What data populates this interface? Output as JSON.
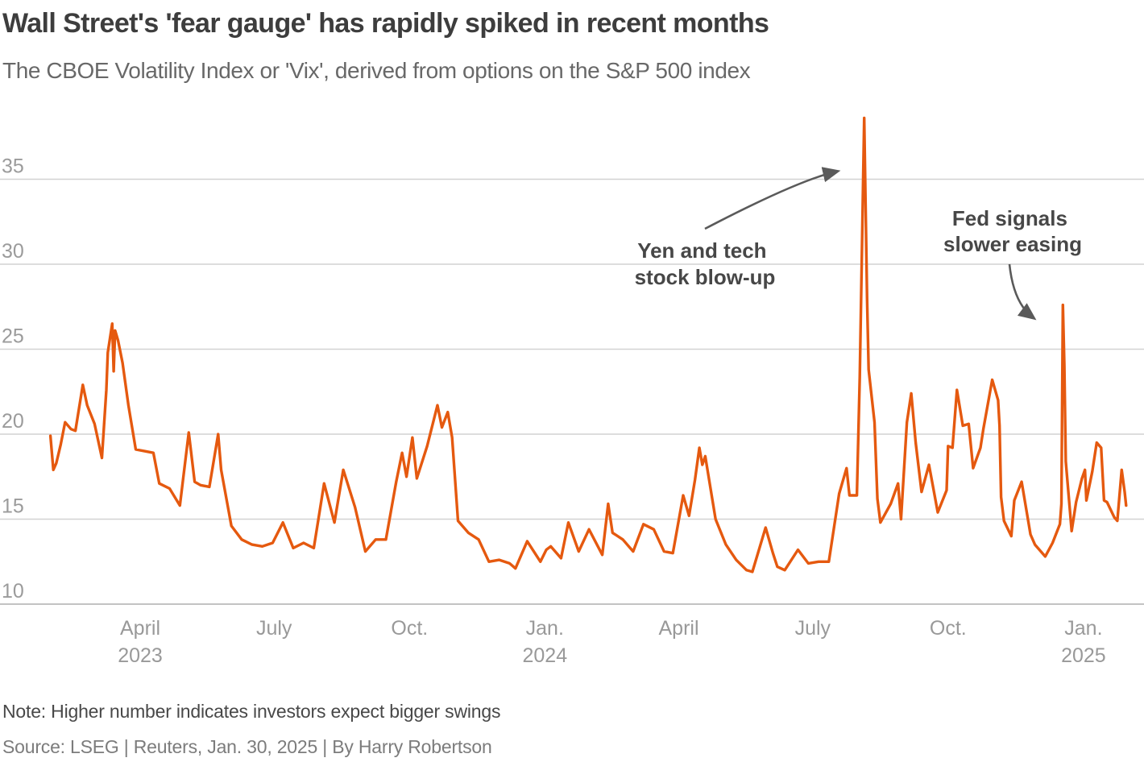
{
  "header": {
    "title": "Wall Street's 'fear gauge' has rapidly spiked in recent months",
    "subtitle": "The CBOE Volatility Index or 'Vix', derived from options on the S&P 500 index"
  },
  "footer": {
    "note": "Note: Higher number indicates investors expect bigger swings",
    "source": "Source: LSEG | Reuters, Jan. 30, 2025 | By Harry Robertson"
  },
  "annotations": [
    {
      "line1": "Yen and tech",
      "line2": "stock blow-up",
      "points_to": "2024-08-05 spike (38.6)"
    },
    {
      "line1": "Fed signals",
      "line2": "slower easing",
      "points_to": "2024-12-18 spike (27.6)"
    }
  ],
  "colors": {
    "line": "#e5590f",
    "grid": "#d2d2d2",
    "axis_label": "#9b9b9b",
    "title": "#3d3d3d",
    "subtitle": "#686868",
    "annotation": "#474747",
    "arrow": "#5a5a5a"
  },
  "chart_data": {
    "type": "line",
    "title": "Wall Street's 'fear gauge' has rapidly spiked in recent months",
    "subtitle": "The CBOE Volatility Index or 'Vix', derived from options on the S&P 500 index",
    "grid": "horizontal",
    "legend": "none",
    "y_axis": {
      "ticks": [
        10,
        15,
        20,
        25,
        30,
        35
      ],
      "range": [
        9,
        39.5
      ],
      "label": ""
    },
    "x_axis": {
      "range": [
        "2023-01-30",
        "2025-01-30"
      ],
      "ticks": [
        {
          "date": "2023-04-01",
          "label": "April",
          "year": "2023"
        },
        {
          "date": "2023-07-01",
          "label": "July",
          "year": ""
        },
        {
          "date": "2023-10-01",
          "label": "Oct.",
          "year": ""
        },
        {
          "date": "2024-01-01",
          "label": "Jan.",
          "year": "2024"
        },
        {
          "date": "2024-04-01",
          "label": "April",
          "year": ""
        },
        {
          "date": "2024-07-01",
          "label": "July",
          "year": ""
        },
        {
          "date": "2024-10-01",
          "label": "Oct.",
          "year": ""
        },
        {
          "date": "2025-01-01",
          "label": "Jan.",
          "year": "2025"
        }
      ]
    },
    "series": [
      {
        "name": "CBOE Volatility Index (VIX)",
        "points": [
          [
            "2023-01-30",
            19.9
          ],
          [
            "2023-02-01",
            17.9
          ],
          [
            "2023-02-03",
            18.3
          ],
          [
            "2023-02-06",
            19.4
          ],
          [
            "2023-02-09",
            20.7
          ],
          [
            "2023-02-13",
            20.3
          ],
          [
            "2023-02-16",
            20.2
          ],
          [
            "2023-02-21",
            22.9
          ],
          [
            "2023-02-24",
            21.7
          ],
          [
            "2023-03-01",
            20.6
          ],
          [
            "2023-03-06",
            18.6
          ],
          [
            "2023-03-09",
            22.6
          ],
          [
            "2023-03-10",
            24.8
          ],
          [
            "2023-03-13",
            26.5
          ],
          [
            "2023-03-14",
            23.7
          ],
          [
            "2023-03-15",
            26.1
          ],
          [
            "2023-03-17",
            25.5
          ],
          [
            "2023-03-20",
            24.2
          ],
          [
            "2023-03-24",
            21.7
          ],
          [
            "2023-03-29",
            19.1
          ],
          [
            "2023-04-04",
            19.0
          ],
          [
            "2023-04-10",
            18.9
          ],
          [
            "2023-04-14",
            17.1
          ],
          [
            "2023-04-21",
            16.8
          ],
          [
            "2023-04-28",
            15.8
          ],
          [
            "2023-05-04",
            20.1
          ],
          [
            "2023-05-08",
            17.2
          ],
          [
            "2023-05-12",
            17.0
          ],
          [
            "2023-05-18",
            16.9
          ],
          [
            "2023-05-24",
            20.0
          ],
          [
            "2023-05-26",
            17.9
          ],
          [
            "2023-06-02",
            14.6
          ],
          [
            "2023-06-09",
            13.8
          ],
          [
            "2023-06-16",
            13.5
          ],
          [
            "2023-06-23",
            13.4
          ],
          [
            "2023-06-30",
            13.6
          ],
          [
            "2023-07-07",
            14.8
          ],
          [
            "2023-07-14",
            13.3
          ],
          [
            "2023-07-21",
            13.6
          ],
          [
            "2023-07-28",
            13.3
          ],
          [
            "2023-08-04",
            17.1
          ],
          [
            "2023-08-11",
            14.8
          ],
          [
            "2023-08-17",
            17.9
          ],
          [
            "2023-08-25",
            15.7
          ],
          [
            "2023-09-01",
            13.1
          ],
          [
            "2023-09-08",
            13.8
          ],
          [
            "2023-09-15",
            13.8
          ],
          [
            "2023-09-22",
            17.2
          ],
          [
            "2023-09-26",
            18.9
          ],
          [
            "2023-09-29",
            17.5
          ],
          [
            "2023-10-03",
            19.8
          ],
          [
            "2023-10-06",
            17.4
          ],
          [
            "2023-10-13",
            19.3
          ],
          [
            "2023-10-20",
            21.7
          ],
          [
            "2023-10-23",
            20.4
          ],
          [
            "2023-10-27",
            21.3
          ],
          [
            "2023-10-30",
            19.8
          ],
          [
            "2023-11-03",
            14.9
          ],
          [
            "2023-11-10",
            14.2
          ],
          [
            "2023-11-17",
            13.8
          ],
          [
            "2023-11-24",
            12.5
          ],
          [
            "2023-12-01",
            12.6
          ],
          [
            "2023-12-08",
            12.4
          ],
          [
            "2023-12-12",
            12.1
          ],
          [
            "2023-12-20",
            13.7
          ],
          [
            "2023-12-29",
            12.5
          ],
          [
            "2024-01-02",
            13.2
          ],
          [
            "2024-01-05",
            13.4
          ],
          [
            "2024-01-12",
            12.7
          ],
          [
            "2024-01-17",
            14.8
          ],
          [
            "2024-01-24",
            13.1
          ],
          [
            "2024-01-31",
            14.4
          ],
          [
            "2024-02-09",
            12.9
          ],
          [
            "2024-02-13",
            15.9
          ],
          [
            "2024-02-16",
            14.2
          ],
          [
            "2024-02-23",
            13.8
          ],
          [
            "2024-03-01",
            13.1
          ],
          [
            "2024-03-08",
            14.7
          ],
          [
            "2024-03-15",
            14.4
          ],
          [
            "2024-03-22",
            13.1
          ],
          [
            "2024-03-28",
            13.0
          ],
          [
            "2024-04-04",
            16.4
          ],
          [
            "2024-04-08",
            15.2
          ],
          [
            "2024-04-12",
            17.3
          ],
          [
            "2024-04-15",
            19.2
          ],
          [
            "2024-04-17",
            18.2
          ],
          [
            "2024-04-19",
            18.7
          ],
          [
            "2024-04-26",
            15.0
          ],
          [
            "2024-05-03",
            13.5
          ],
          [
            "2024-05-10",
            12.6
          ],
          [
            "2024-05-17",
            12.0
          ],
          [
            "2024-05-21",
            11.9
          ],
          [
            "2024-05-30",
            14.5
          ],
          [
            "2024-06-04",
            13.0
          ],
          [
            "2024-06-07",
            12.2
          ],
          [
            "2024-06-12",
            12.0
          ],
          [
            "2024-06-21",
            13.2
          ],
          [
            "2024-06-28",
            12.4
          ],
          [
            "2024-07-05",
            12.5
          ],
          [
            "2024-07-12",
            12.5
          ],
          [
            "2024-07-19",
            16.5
          ],
          [
            "2024-07-24",
            18.0
          ],
          [
            "2024-07-26",
            16.4
          ],
          [
            "2024-07-31",
            16.4
          ],
          [
            "2024-08-02",
            23.4
          ],
          [
            "2024-08-05",
            38.6
          ],
          [
            "2024-08-07",
            27.9
          ],
          [
            "2024-08-08",
            23.8
          ],
          [
            "2024-08-12",
            20.7
          ],
          [
            "2024-08-14",
            16.2
          ],
          [
            "2024-08-16",
            14.8
          ],
          [
            "2024-08-23",
            15.9
          ],
          [
            "2024-08-28",
            17.1
          ],
          [
            "2024-08-30",
            15.0
          ],
          [
            "2024-09-03",
            20.7
          ],
          [
            "2024-09-06",
            22.4
          ],
          [
            "2024-09-09",
            19.5
          ],
          [
            "2024-09-13",
            16.6
          ],
          [
            "2024-09-18",
            18.2
          ],
          [
            "2024-09-24",
            15.4
          ],
          [
            "2024-09-30",
            16.7
          ],
          [
            "2024-10-01",
            19.3
          ],
          [
            "2024-10-04",
            19.2
          ],
          [
            "2024-10-07",
            22.6
          ],
          [
            "2024-10-11",
            20.5
          ],
          [
            "2024-10-15",
            20.6
          ],
          [
            "2024-10-18",
            18.0
          ],
          [
            "2024-10-23",
            19.2
          ],
          [
            "2024-10-25",
            20.3
          ],
          [
            "2024-10-31",
            23.2
          ],
          [
            "2024-11-04",
            22.0
          ],
          [
            "2024-11-05",
            20.5
          ],
          [
            "2024-11-06",
            16.3
          ],
          [
            "2024-11-08",
            14.9
          ],
          [
            "2024-11-13",
            14.0
          ],
          [
            "2024-11-15",
            16.1
          ],
          [
            "2024-11-20",
            17.2
          ],
          [
            "2024-11-26",
            14.1
          ],
          [
            "2024-11-29",
            13.5
          ],
          [
            "2024-12-06",
            12.8
          ],
          [
            "2024-12-11",
            13.6
          ],
          [
            "2024-12-16",
            14.7
          ],
          [
            "2024-12-17",
            15.9
          ],
          [
            "2024-12-18",
            27.6
          ],
          [
            "2024-12-19",
            24.1
          ],
          [
            "2024-12-20",
            18.4
          ],
          [
            "2024-12-24",
            14.3
          ],
          [
            "2024-12-27",
            16.0
          ],
          [
            "2024-12-31",
            17.4
          ],
          [
            "2025-01-02",
            17.9
          ],
          [
            "2025-01-03",
            16.1
          ],
          [
            "2025-01-07",
            17.8
          ],
          [
            "2025-01-10",
            19.5
          ],
          [
            "2025-01-13",
            19.2
          ],
          [
            "2025-01-15",
            16.1
          ],
          [
            "2025-01-17",
            16.0
          ],
          [
            "2025-01-22",
            15.1
          ],
          [
            "2025-01-24",
            14.9
          ],
          [
            "2025-01-27",
            17.9
          ],
          [
            "2025-01-29",
            16.6
          ],
          [
            "2025-01-30",
            15.8
          ]
        ]
      }
    ]
  }
}
